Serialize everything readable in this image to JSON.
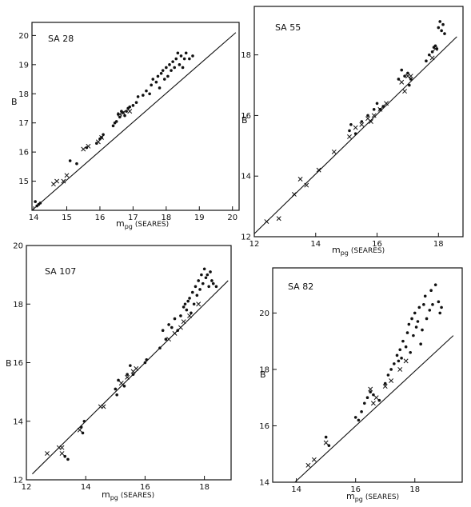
{
  "chart_data": [
    {
      "type": "scatter",
      "title": "SA 28",
      "xlabel_main": "m",
      "xlabel_sub": "pg",
      "xlabel_suffix": "(SEARES)",
      "ylabel": "B",
      "xlim": [
        13.95,
        20.2
      ],
      "ylim": [
        14.0,
        20.45
      ],
      "xticks": [
        14,
        15,
        16,
        17,
        18,
        19,
        20
      ],
      "yticks": [
        15,
        16,
        17,
        18,
        19,
        20
      ],
      "line": [
        [
          13.95,
          14.0
        ],
        [
          20.1,
          20.1
        ]
      ],
      "series": [
        {
          "marker": "dot",
          "points": [
            [
              14.05,
              14.3
            ],
            [
              14.1,
              14.15
            ],
            [
              14.15,
              14.2
            ],
            [
              14.2,
              14.25
            ],
            [
              15.1,
              15.7
            ],
            [
              15.3,
              15.6
            ],
            [
              15.6,
              16.15
            ],
            [
              15.9,
              16.3
            ],
            [
              16.0,
              16.45
            ],
            [
              16.05,
              16.5
            ],
            [
              16.1,
              16.6
            ],
            [
              16.4,
              16.9
            ],
            [
              16.45,
              17.0
            ],
            [
              16.5,
              17.05
            ],
            [
              16.55,
              17.3
            ],
            [
              16.6,
              17.2
            ],
            [
              16.65,
              17.4
            ],
            [
              16.7,
              17.35
            ],
            [
              16.75,
              17.25
            ],
            [
              16.8,
              17.4
            ],
            [
              16.85,
              17.5
            ],
            [
              16.9,
              17.55
            ],
            [
              17.0,
              17.6
            ],
            [
              17.1,
              17.7
            ],
            [
              17.15,
              17.9
            ],
            [
              17.3,
              17.95
            ],
            [
              17.4,
              18.1
            ],
            [
              17.5,
              18.0
            ],
            [
              17.55,
              18.3
            ],
            [
              17.6,
              18.5
            ],
            [
              17.7,
              18.4
            ],
            [
              17.75,
              18.6
            ],
            [
              17.8,
              18.2
            ],
            [
              17.85,
              18.7
            ],
            [
              17.9,
              18.8
            ],
            [
              17.95,
              18.5
            ],
            [
              18.0,
              18.9
            ],
            [
              18.05,
              18.6
            ],
            [
              18.1,
              19.0
            ],
            [
              18.15,
              18.8
            ],
            [
              18.2,
              19.1
            ],
            [
              18.25,
              18.9
            ],
            [
              18.3,
              19.2
            ],
            [
              18.35,
              19.4
            ],
            [
              18.4,
              19.0
            ],
            [
              18.45,
              19.3
            ],
            [
              18.5,
              18.9
            ],
            [
              18.55,
              19.2
            ],
            [
              18.6,
              19.4
            ],
            [
              18.7,
              19.2
            ],
            [
              18.8,
              19.3
            ]
          ]
        },
        {
          "marker": "cross",
          "points": [
            [
              14.6,
              14.9
            ],
            [
              14.7,
              15.0
            ],
            [
              14.9,
              15.0
            ],
            [
              15.0,
              15.2
            ],
            [
              15.5,
              16.1
            ],
            [
              15.65,
              16.2
            ],
            [
              15.95,
              16.35
            ],
            [
              16.05,
              16.5
            ],
            [
              16.6,
              17.3
            ],
            [
              16.7,
              17.35
            ],
            [
              16.9,
              17.4
            ]
          ]
        }
      ]
    },
    {
      "type": "scatter",
      "title": "SA 55",
      "xlabel_main": "m",
      "xlabel_sub": "pg",
      "xlabel_suffix": "(SEARES)",
      "ylabel": "B",
      "xlim": [
        12.0,
        18.8
      ],
      "ylim": [
        12.0,
        19.6
      ],
      "xticks": [
        12,
        14,
        16,
        18
      ],
      "yticks": [
        12,
        14,
        16,
        18
      ],
      "line": [
        [
          12.0,
          12.1
        ],
        [
          18.6,
          18.6
        ]
      ],
      "series": [
        {
          "marker": "dot",
          "points": [
            [
              15.1,
              15.5
            ],
            [
              15.15,
              15.7
            ],
            [
              15.3,
              15.4
            ],
            [
              15.5,
              15.8
            ],
            [
              15.7,
              16.0
            ],
            [
              15.9,
              16.2
            ],
            [
              16.0,
              16.4
            ],
            [
              16.1,
              16.2
            ],
            [
              16.2,
              16.3
            ],
            [
              16.7,
              17.2
            ],
            [
              16.8,
              17.5
            ],
            [
              16.9,
              17.3
            ],
            [
              17.0,
              17.4
            ],
            [
              17.05,
              17.0
            ],
            [
              17.1,
              17.2
            ],
            [
              17.6,
              17.8
            ],
            [
              17.7,
              18.0
            ],
            [
              17.8,
              18.1
            ],
            [
              17.85,
              18.25
            ],
            [
              17.9,
              18.3
            ],
            [
              17.95,
              18.2
            ],
            [
              18.0,
              18.9
            ],
            [
              18.05,
              19.1
            ],
            [
              18.1,
              18.8
            ],
            [
              18.15,
              19.0
            ],
            [
              18.2,
              18.7
            ]
          ]
        },
        {
          "marker": "cross",
          "points": [
            [
              12.4,
              12.5
            ],
            [
              12.8,
              12.6
            ],
            [
              13.3,
              13.4
            ],
            [
              13.5,
              13.9
            ],
            [
              13.7,
              13.7
            ],
            [
              14.1,
              14.2
            ],
            [
              14.6,
              14.8
            ],
            [
              15.1,
              15.3
            ],
            [
              15.3,
              15.6
            ],
            [
              15.5,
              15.7
            ],
            [
              15.7,
              15.9
            ],
            [
              15.8,
              15.8
            ],
            [
              15.9,
              16.0
            ],
            [
              16.1,
              16.2
            ],
            [
              16.3,
              16.4
            ],
            [
              16.8,
              17.1
            ],
            [
              16.9,
              16.8
            ],
            [
              17.0,
              17.3
            ],
            [
              17.1,
              17.3
            ],
            [
              17.8,
              17.9
            ],
            [
              17.9,
              18.2
            ]
          ]
        }
      ]
    },
    {
      "type": "scatter",
      "title": "SA 107",
      "xlabel_main": "m",
      "xlabel_sub": "pg",
      "xlabel_suffix": "(SEARES)",
      "ylabel": "B",
      "xlim": [
        12.0,
        18.9
      ],
      "ylim": [
        12.0,
        20.0
      ],
      "xticks": [
        12,
        14,
        16,
        18
      ],
      "yticks": [
        12,
        14,
        16,
        18,
        20
      ],
      "line": [
        [
          12.2,
          12.2
        ],
        [
          18.8,
          18.8
        ]
      ],
      "series": [
        {
          "marker": "dot",
          "points": [
            [
              13.3,
              12.8
            ],
            [
              13.4,
              12.7
            ],
            [
              13.85,
              13.8
            ],
            [
              13.95,
              14.0
            ],
            [
              13.9,
              13.6
            ],
            [
              15.0,
              15.1
            ],
            [
              15.05,
              14.9
            ],
            [
              15.1,
              15.4
            ],
            [
              15.3,
              15.2
            ],
            [
              15.4,
              15.6
            ],
            [
              15.5,
              15.9
            ],
            [
              15.6,
              15.6
            ],
            [
              16.0,
              16.0
            ],
            [
              16.05,
              16.1
            ],
            [
              16.5,
              16.5
            ],
            [
              16.6,
              17.1
            ],
            [
              16.7,
              16.8
            ],
            [
              16.8,
              17.3
            ],
            [
              16.9,
              17.2
            ],
            [
              17.0,
              17.5
            ],
            [
              17.1,
              17.1
            ],
            [
              17.2,
              17.6
            ],
            [
              17.3,
              17.9
            ],
            [
              17.35,
              18.0
            ],
            [
              17.4,
              17.8
            ],
            [
              17.45,
              18.1
            ],
            [
              17.5,
              18.2
            ],
            [
              17.55,
              17.7
            ],
            [
              17.6,
              18.4
            ],
            [
              17.65,
              18.0
            ],
            [
              17.7,
              18.6
            ],
            [
              17.75,
              18.3
            ],
            [
              17.8,
              18.8
            ],
            [
              17.85,
              18.5
            ],
            [
              17.9,
              19.0
            ],
            [
              17.95,
              18.7
            ],
            [
              18.0,
              19.2
            ],
            [
              18.05,
              18.9
            ],
            [
              18.1,
              19.0
            ],
            [
              18.15,
              18.6
            ],
            [
              18.2,
              19.1
            ],
            [
              18.25,
              18.8
            ],
            [
              18.3,
              18.7
            ],
            [
              18.4,
              18.6
            ]
          ]
        },
        {
          "marker": "cross",
          "points": [
            [
              12.7,
              12.9
            ],
            [
              13.1,
              13.1
            ],
            [
              13.2,
              13.1
            ],
            [
              13.2,
              12.9
            ],
            [
              13.8,
              13.7
            ],
            [
              14.5,
              14.5
            ],
            [
              14.6,
              14.5
            ],
            [
              15.2,
              15.3
            ],
            [
              15.4,
              15.5
            ],
            [
              15.6,
              15.7
            ],
            [
              15.7,
              15.8
            ],
            [
              16.8,
              16.8
            ],
            [
              17.0,
              17.0
            ],
            [
              17.2,
              17.2
            ],
            [
              17.3,
              17.4
            ],
            [
              17.5,
              17.6
            ],
            [
              17.8,
              18.0
            ]
          ]
        }
      ]
    },
    {
      "type": "scatter",
      "title": "SA 82",
      "xlabel_main": "m",
      "xlabel_sub": "pg",
      "xlabel_suffix": "(SEARES)",
      "ylabel": "B",
      "xlim": [
        13.2,
        19.6
      ],
      "ylim": [
        14.0,
        21.6
      ],
      "xticks": [
        14,
        16,
        18
      ],
      "yticks": [
        14,
        16,
        18,
        20
      ],
      "line": [
        [
          13.95,
          14.0
        ],
        [
          19.3,
          19.2
        ]
      ],
      "series": [
        {
          "marker": "dot",
          "points": [
            [
              15.0,
              15.6
            ],
            [
              15.1,
              15.3
            ],
            [
              16.0,
              16.3
            ],
            [
              16.1,
              16.2
            ],
            [
              16.2,
              16.5
            ],
            [
              16.3,
              16.8
            ],
            [
              16.4,
              17.0
            ],
            [
              16.5,
              17.2
            ],
            [
              16.6,
              17.1
            ],
            [
              16.8,
              16.9
            ],
            [
              17.0,
              17.5
            ],
            [
              17.1,
              17.8
            ],
            [
              17.2,
              18.0
            ],
            [
              17.3,
              18.2
            ],
            [
              17.4,
              18.5
            ],
            [
              17.45,
              18.3
            ],
            [
              17.5,
              18.7
            ],
            [
              17.55,
              18.4
            ],
            [
              17.6,
              19.0
            ],
            [
              17.7,
              18.8
            ],
            [
              17.75,
              19.3
            ],
            [
              17.8,
              19.6
            ],
            [
              17.85,
              18.6
            ],
            [
              17.9,
              19.8
            ],
            [
              17.95,
              19.2
            ],
            [
              18.0,
              20.0
            ],
            [
              18.05,
              19.5
            ],
            [
              18.1,
              19.7
            ],
            [
              18.15,
              20.2
            ],
            [
              18.2,
              18.9
            ],
            [
              18.25,
              19.4
            ],
            [
              18.3,
              20.3
            ],
            [
              18.35,
              20.6
            ],
            [
              18.4,
              19.8
            ],
            [
              18.5,
              20.1
            ],
            [
              18.55,
              20.8
            ],
            [
              18.6,
              20.3
            ],
            [
              18.7,
              21.0
            ],
            [
              18.8,
              20.4
            ],
            [
              18.85,
              20.0
            ],
            [
              18.9,
              20.2
            ]
          ]
        },
        {
          "marker": "cross",
          "points": [
            [
              14.4,
              14.6
            ],
            [
              14.6,
              14.8
            ],
            [
              15.0,
              15.4
            ],
            [
              16.5,
              17.3
            ],
            [
              16.6,
              16.8
            ],
            [
              16.7,
              17.0
            ],
            [
              17.0,
              17.4
            ],
            [
              17.2,
              17.6
            ],
            [
              17.5,
              18.0
            ],
            [
              17.7,
              18.3
            ]
          ]
        }
      ]
    }
  ]
}
